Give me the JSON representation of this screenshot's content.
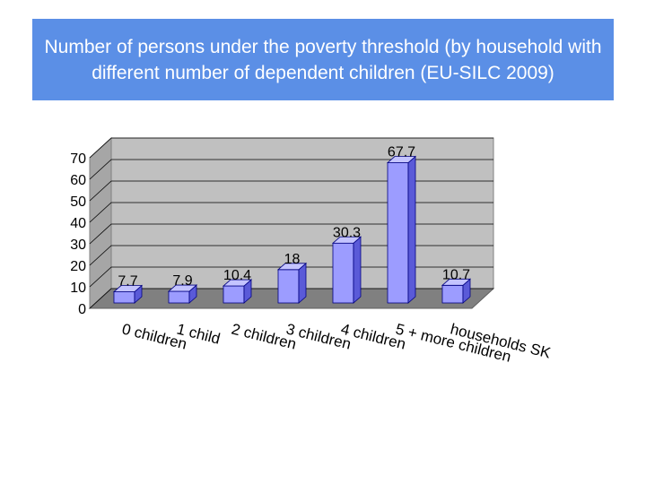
{
  "title": "Number of persons under the poverty threshold (by household with different number of dependent children (EU-SILC 2009)",
  "chart_data": {
    "type": "bar",
    "title": "Number of persons under the poverty threshold (by household with different number of dependent children (EU-SILC 2009)",
    "categories": [
      "0 children",
      "1 child",
      "2 children",
      "3 children",
      "4 children",
      "5 + more children",
      "households SK"
    ],
    "values": [
      7.7,
      7.9,
      10.4,
      18,
      30.3,
      67.7,
      10.7
    ],
    "data_labels": [
      "7.7",
      "7.9",
      "10.4",
      "18",
      "30.3",
      "67.7",
      "10.7"
    ],
    "y_ticks": [
      "0",
      "10",
      "20",
      "30",
      "40",
      "50",
      "60",
      "70"
    ],
    "ylim": [
      0,
      70
    ],
    "grid": true,
    "three_d": true,
    "colors": {
      "bar_face": "#9c9cff",
      "bar_side": "#5a5ad8",
      "bar_top": "#c4c4ff",
      "back_wall": "#c0c0c0",
      "floor": "#808080",
      "banner": "#5b8fe6"
    }
  }
}
